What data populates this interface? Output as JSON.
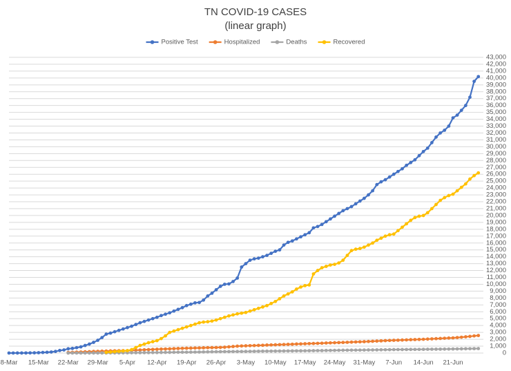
{
  "chart_data": {
    "type": "line",
    "title": "TN COVID-19 CASES",
    "subtitle": "(linear graph)",
    "legend": "top",
    "grid": true,
    "categories": [
      "8-Mar",
      null,
      null,
      null,
      null,
      null,
      null,
      "15-Mar",
      null,
      null,
      null,
      null,
      null,
      null,
      "22-Mar",
      null,
      null,
      null,
      null,
      null,
      null,
      "29-Mar",
      null,
      null,
      null,
      null,
      null,
      null,
      "5-Apr",
      null,
      null,
      null,
      null,
      null,
      null,
      "12-Apr",
      null,
      null,
      null,
      null,
      null,
      null,
      "19-Apr",
      null,
      null,
      null,
      null,
      null,
      null,
      "26-Apr",
      null,
      null,
      null,
      null,
      null,
      null,
      "3-May",
      null,
      null,
      null,
      null,
      null,
      null,
      "10-May",
      null,
      null,
      null,
      null,
      null,
      null,
      "17-May",
      null,
      null,
      null,
      null,
      null,
      null,
      "24-May",
      null,
      null,
      null,
      null,
      null,
      null,
      "31-May",
      null,
      null,
      null,
      null,
      null,
      null,
      "7-Jun",
      null,
      null,
      null,
      null,
      null,
      null,
      "14-Jun",
      null,
      null,
      null,
      null,
      null,
      null,
      "21-Jun",
      null,
      null,
      null,
      null,
      null,
      null
    ],
    "ylim": [
      0,
      43000
    ],
    "yticks": [
      0,
      {
        "value": 1000,
        "label": "1,000"
      },
      {
        "value": 2000,
        "label": "2,000"
      },
      {
        "value": 3000,
        "label": "3,000"
      },
      {
        "value": 4000,
        "label": "4,000"
      },
      {
        "value": 5000,
        "label": "5,000"
      },
      {
        "value": 6000,
        "label": "6,000"
      },
      {
        "value": 7000,
        "label": "7,000"
      },
      {
        "value": 8000,
        "label": "8,000"
      },
      {
        "value": 9000,
        "label": "9,000"
      },
      {
        "value": 10000,
        "label": "10,000"
      },
      {
        "value": 11000,
        "label": "11,000"
      },
      {
        "value": 12000,
        "label": "12,000"
      },
      {
        "value": 13000,
        "label": "13,000"
      },
      {
        "value": 14000,
        "label": "14,000"
      },
      {
        "value": 15000,
        "label": "15,000"
      },
      {
        "value": 16000,
        "label": "16,000"
      },
      {
        "value": 17000,
        "label": "17,000"
      },
      {
        "value": 18000,
        "label": "18,000"
      },
      {
        "value": 19000,
        "label": "19,000"
      },
      {
        "value": 20000,
        "label": "20,000"
      },
      {
        "value": 21000,
        "label": "21,000"
      },
      {
        "value": 22000,
        "label": "22,000"
      },
      {
        "value": 23000,
        "label": "23,000"
      },
      {
        "value": 24000,
        "label": "24,000"
      },
      {
        "value": 25000,
        "label": "25,000"
      },
      {
        "value": 26000,
        "label": "26,000"
      },
      {
        "value": 27000,
        "label": "27,000"
      },
      {
        "value": 28000,
        "label": "28,000"
      },
      {
        "value": 29000,
        "label": "29,000"
      },
      {
        "value": 30000,
        "label": "30,000"
      },
      {
        "value": 31000,
        "label": "31,000"
      },
      {
        "value": 32000,
        "label": "32,000"
      },
      {
        "value": 33000,
        "label": "33,000"
      },
      {
        "value": 34000,
        "label": "34,000"
      },
      {
        "value": 35000,
        "label": "35,000"
      },
      {
        "value": 36000,
        "label": "36,000"
      },
      {
        "value": 37000,
        "label": "37,000"
      },
      {
        "value": 38000,
        "label": "38,000"
      },
      {
        "value": 39000,
        "label": "39,000"
      },
      {
        "value": 40000,
        "label": "40,000"
      },
      {
        "value": 41000,
        "label": "41,000"
      },
      {
        "value": 42000,
        "label": "42,000"
      },
      {
        "value": 43000,
        "label": "43,000"
      }
    ],
    "series": [
      {
        "name": "Positive Test",
        "color": "#4472c4",
        "values": [
          1,
          3,
          5,
          8,
          13,
          20,
          30,
          50,
          80,
          110,
          150,
          230,
          370,
          450,
          620,
          670,
          780,
          900,
          1100,
          1300,
          1550,
          1850,
          2250,
          2750,
          2900,
          3100,
          3300,
          3500,
          3700,
          3900,
          4150,
          4400,
          4600,
          4800,
          5000,
          5200,
          5450,
          5650,
          5850,
          6100,
          6350,
          6600,
          6900,
          7100,
          7300,
          7350,
          7700,
          8300,
          8700,
          9200,
          9700,
          10000,
          10050,
          10400,
          10900,
          12500,
          13000,
          13500,
          13700,
          13800,
          14000,
          14200,
          14500,
          14800,
          15000,
          15700,
          16100,
          16300,
          16600,
          16900,
          17200,
          17500,
          18200,
          18400,
          18700,
          19100,
          19500,
          19900,
          20300,
          20700,
          21000,
          21300,
          21700,
          22100,
          22500,
          23000,
          23600,
          24500,
          24900,
          25200,
          25600,
          26000,
          26400,
          26800,
          27300,
          27700,
          28100,
          28700,
          29300,
          29800,
          30600,
          31400,
          32000,
          32400,
          33000,
          34200,
          34600,
          35300,
          36000,
          37200,
          39500,
          40200
        ]
      },
      {
        "name": "Hospitalized",
        "color": "#ed7d31",
        "values": [
          null,
          null,
          null,
          null,
          null,
          null,
          null,
          null,
          null,
          null,
          null,
          null,
          null,
          null,
          80,
          100,
          130,
          150,
          180,
          200,
          230,
          250,
          270,
          290,
          310,
          330,
          340,
          345,
          350,
          380,
          410,
          440,
          470,
          500,
          525,
          550,
          570,
          590,
          610,
          640,
          660,
          680,
          700,
          710,
          730,
          740,
          760,
          780,
          790,
          800,
          820,
          850,
          900,
          950,
          1000,
          1030,
          1050,
          1070,
          1090,
          1110,
          1130,
          1160,
          1180,
          1200,
          1220,
          1240,
          1260,
          1280,
          1310,
          1330,
          1350,
          1370,
          1390,
          1410,
          1430,
          1460,
          1480,
          1500,
          1520,
          1540,
          1560,
          1590,
          1610,
          1630,
          1650,
          1680,
          1710,
          1740,
          1770,
          1800,
          1830,
          1850,
          1870,
          1890,
          1910,
          1940,
          1960,
          1980,
          2000,
          2030,
          2060,
          2090,
          2120,
          2150,
          2180,
          2200,
          2250,
          2300,
          2360,
          2420,
          2490,
          2550
        ]
      },
      {
        "name": "Deaths",
        "color": "#a5a5a5",
        "values": [
          null,
          null,
          null,
          null,
          null,
          null,
          null,
          null,
          null,
          null,
          null,
          null,
          null,
          null,
          0,
          1,
          2,
          3,
          4,
          5,
          6,
          8,
          10,
          12,
          15,
          20,
          25,
          30,
          35,
          40,
          45,
          50,
          55,
          60,
          65,
          70,
          80,
          90,
          100,
          110,
          115,
          120,
          125,
          130,
          140,
          150,
          160,
          170,
          180,
          190,
          200,
          205,
          210,
          215,
          220,
          225,
          230,
          240,
          250,
          260,
          270,
          275,
          280,
          285,
          290,
          300,
          305,
          310,
          315,
          320,
          330,
          340,
          350,
          355,
          360,
          370,
          380,
          390,
          400,
          410,
          415,
          420,
          425,
          430,
          440,
          445,
          450,
          460,
          470,
          480,
          490,
          500,
          505,
          510,
          515,
          520,
          525,
          530,
          540,
          550,
          555,
          560,
          565,
          570,
          580,
          590,
          600,
          610,
          620,
          630,
          640,
          650
        ]
      },
      {
        "name": "Recovered",
        "color": "#ffc000",
        "values": [
          null,
          null,
          null,
          null,
          null,
          null,
          null,
          null,
          null,
          null,
          null,
          null,
          null,
          null,
          null,
          null,
          null,
          null,
          null,
          null,
          null,
          null,
          null,
          100,
          150,
          200,
          250,
          300,
          350,
          500,
          800,
          1100,
          1300,
          1500,
          1650,
          1800,
          2100,
          2500,
          3000,
          3200,
          3400,
          3600,
          3800,
          4000,
          4200,
          4400,
          4500,
          4550,
          4650,
          4800,
          5000,
          5200,
          5400,
          5550,
          5700,
          5800,
          5900,
          6100,
          6300,
          6500,
          6700,
          6900,
          7200,
          7500,
          7900,
          8300,
          8600,
          8900,
          9300,
          9600,
          9800,
          9900,
          11500,
          12000,
          12400,
          12600,
          12800,
          12900,
          13100,
          13500,
          14200,
          14900,
          15100,
          15200,
          15400,
          15700,
          16000,
          16400,
          16700,
          17000,
          17200,
          17300,
          17800,
          18300,
          18800,
          19300,
          19700,
          19900,
          20000,
          20400,
          21000,
          21600,
          22200,
          22600,
          22900,
          23100,
          23600,
          24100,
          24600,
          25300,
          25800,
          26200
        ]
      }
    ]
  }
}
